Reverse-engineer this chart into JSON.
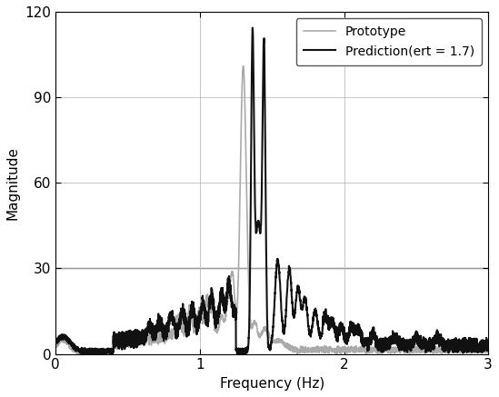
{
  "title": "",
  "xlabel": "Frequency (Hz)",
  "ylabel": "Magnitude",
  "xlim": [
    0,
    3
  ],
  "ylim": [
    0,
    120
  ],
  "xticks": [
    0,
    1,
    2,
    3
  ],
  "yticks": [
    0,
    30,
    60,
    90,
    120
  ],
  "legend_labels": [
    "Prototype",
    "Prediction(ert = 1.7)"
  ],
  "prototype_color": "#aaaaaa",
  "prediction_color": "#111111",
  "prototype_linewidth": 1.2,
  "prediction_linewidth": 1.5,
  "figsize": [
    5.49,
    4.37
  ],
  "dpi": 100
}
